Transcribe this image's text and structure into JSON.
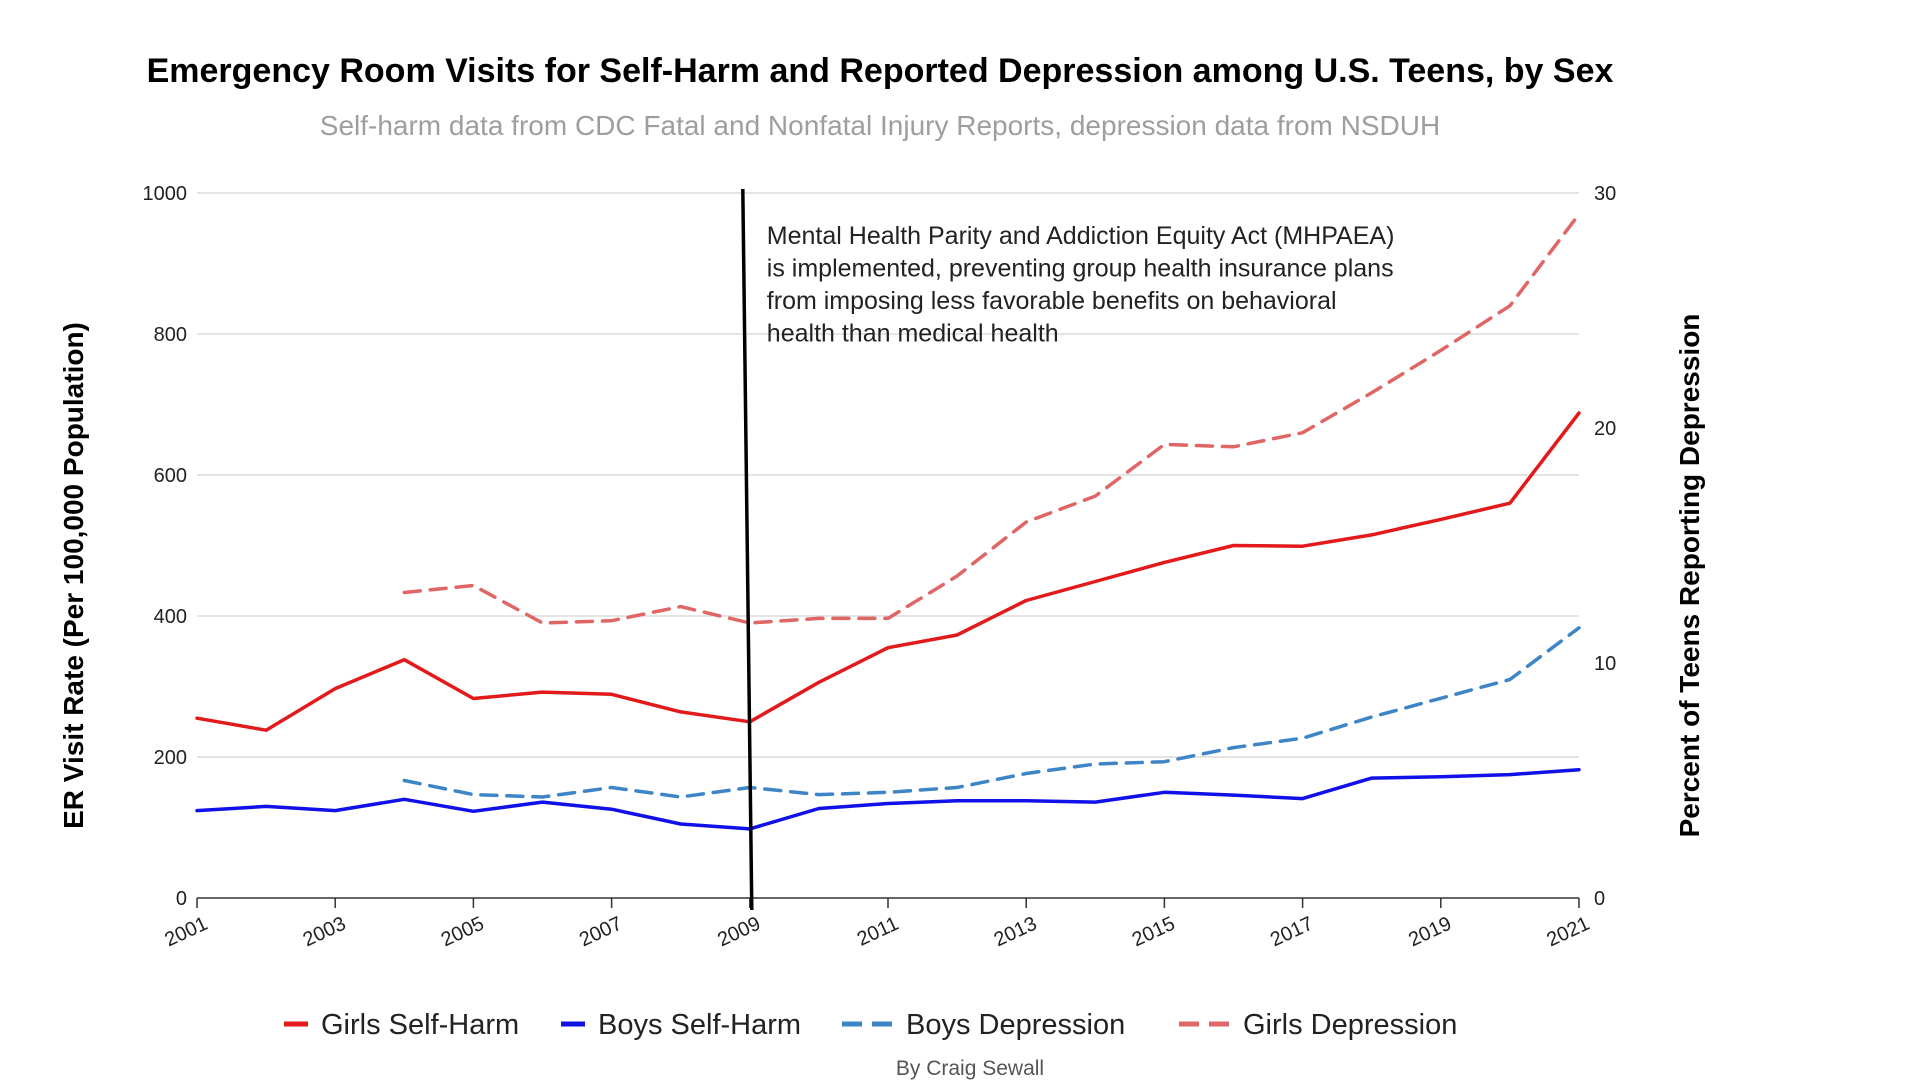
{
  "chart_data": {
    "type": "line",
    "title": "Emergency Room Visits for Self-Harm and Reported Depression among U.S. Teens, by Sex",
    "subtitle": "Self-harm data from CDC Fatal and Nonfatal Injury Reports, depression data from NSDUH",
    "credit": "By Craig Sewall",
    "ylabel": "ER Visit Rate (Per 100,000 Population)",
    "y2label": "Percent of Teens Reporting Depression",
    "xlim": [
      2001,
      2021
    ],
    "ylim": [
      0,
      1000
    ],
    "y2lim": [
      0,
      30
    ],
    "x_ticks": [
      2001,
      2003,
      2005,
      2007,
      2009,
      2011,
      2013,
      2015,
      2017,
      2019,
      2021
    ],
    "y_ticks": [
      0,
      200,
      400,
      600,
      800,
      1000
    ],
    "y2_ticks": [
      0,
      10,
      20,
      30
    ],
    "grid": true,
    "legend_position": "bottom",
    "series": [
      {
        "name": "Girls Self-Harm",
        "axis": "left",
        "color": "#e31a1c",
        "dash": false,
        "x": [
          2001,
          2002,
          2003,
          2004,
          2005,
          2006,
          2007,
          2008,
          2009,
          2010,
          2011,
          2012,
          2013,
          2014,
          2015,
          2016,
          2017,
          2018,
          2019,
          2020,
          2021
        ],
        "values": [
          255,
          238,
          297,
          338,
          283,
          292,
          289,
          264,
          250,
          306,
          355,
          373,
          422,
          449,
          476,
          500,
          499,
          515,
          537,
          560,
          688
        ]
      },
      {
        "name": "Boys Self-Harm",
        "axis": "left",
        "color": "#1010e8",
        "dash": false,
        "x": [
          2001,
          2002,
          2003,
          2004,
          2005,
          2006,
          2007,
          2008,
          2009,
          2010,
          2011,
          2012,
          2013,
          2014,
          2015,
          2016,
          2017,
          2018,
          2019,
          2020,
          2021
        ],
        "values": [
          124,
          130,
          124,
          140,
          123,
          136,
          126,
          105,
          98,
          127,
          134,
          138,
          138,
          136,
          150,
          146,
          141,
          170,
          172,
          175,
          182
        ]
      },
      {
        "name": "Boys Depression",
        "axis": "right",
        "color": "#3d85c6",
        "dash": true,
        "x": [
          2004,
          2005,
          2006,
          2007,
          2008,
          2009,
          2010,
          2011,
          2012,
          2013,
          2014,
          2015,
          2016,
          2017,
          2018,
          2019,
          2020,
          2021
        ],
        "values": [
          5.0,
          4.4,
          4.3,
          4.7,
          4.3,
          4.7,
          4.4,
          4.5,
          4.7,
          5.3,
          5.7,
          5.8,
          6.4,
          6.8,
          7.7,
          8.5,
          9.3,
          11.5
        ]
      },
      {
        "name": "Girls Depression",
        "axis": "right",
        "color": "#e06666",
        "dash": true,
        "x": [
          2004,
          2005,
          2006,
          2007,
          2008,
          2009,
          2010,
          2011,
          2012,
          2013,
          2014,
          2015,
          2016,
          2017,
          2018,
          2019,
          2020,
          2021
        ],
        "values": [
          13.0,
          13.3,
          11.7,
          11.8,
          12.4,
          11.7,
          11.9,
          11.9,
          13.7,
          16.0,
          17.1,
          19.3,
          19.2,
          19.8,
          21.5,
          23.3,
          25.2,
          29.1
        ]
      }
    ],
    "annotations": [
      {
        "x": 2009,
        "lines": [
          "Mental Health Parity and Addiction Equity Act (MHPAEA)",
          "is implemented, preventing group health insurance plans",
          "from imposing less favorable benefits on behavioral",
          "health than medical health"
        ]
      }
    ]
  }
}
